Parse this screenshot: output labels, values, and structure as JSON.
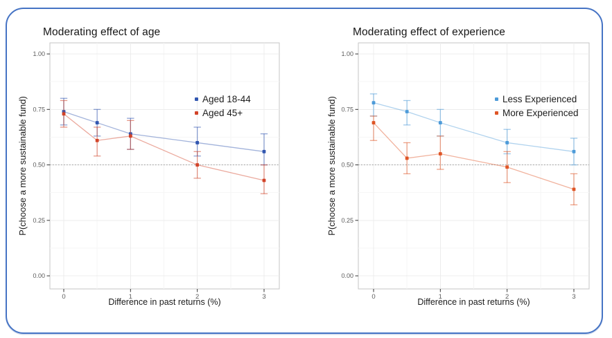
{
  "frame": {
    "border_color": "#4573c4",
    "background": "#ffffff"
  },
  "chart_data": [
    {
      "type": "line",
      "title": "Moderating effect of age",
      "xlabel": "Difference in past returns (%)",
      "ylabel": "P(choose a more sustainable fund)",
      "x": [
        0,
        0.5,
        1,
        2,
        3
      ],
      "xtick_values": [
        0,
        1,
        2,
        3
      ],
      "xtick_labels": [
        "0",
        "1",
        "2",
        "3"
      ],
      "ytick_values": [
        1.0,
        0.75,
        0.5,
        0.25,
        0.0
      ],
      "ytick_labels": [
        "1.00",
        "0.75",
        "0.50",
        "0.25",
        "0.00"
      ],
      "ylim": [
        -0.06,
        1.05
      ],
      "grid": true,
      "reference_line_y": 0.5,
      "legend_position": "inside-top-right",
      "series": [
        {
          "name": "Aged 18-44",
          "color": "#3156b0",
          "values": [
            0.74,
            0.69,
            0.64,
            0.6,
            0.56
          ],
          "ci_low": [
            0.68,
            0.63,
            0.57,
            0.54,
            0.5
          ],
          "ci_high": [
            0.8,
            0.75,
            0.71,
            0.67,
            0.64
          ]
        },
        {
          "name": "Aged 45+",
          "color": "#d24328",
          "values": [
            0.73,
            0.61,
            0.63,
            0.5,
            0.43
          ],
          "ci_low": [
            0.67,
            0.54,
            0.57,
            0.44,
            0.37
          ],
          "ci_high": [
            0.79,
            0.67,
            0.7,
            0.56,
            0.5
          ]
        }
      ]
    },
    {
      "type": "line",
      "title": "Moderating effect of experience",
      "xlabel": "Difference in past returns (%)",
      "ylabel": "P(choose a more sustainable fund)",
      "x": [
        0,
        0.5,
        1,
        2,
        3
      ],
      "xtick_values": [
        0,
        1,
        2,
        3
      ],
      "xtick_labels": [
        "0",
        "1",
        "2",
        "3"
      ],
      "ytick_values": [
        1.0,
        0.75,
        0.5,
        0.25,
        0.0
      ],
      "ytick_labels": [
        "1.00",
        "0.75",
        "0.50",
        "0.25",
        "0.00"
      ],
      "ylim": [
        -0.06,
        1.05
      ],
      "grid": true,
      "reference_line_y": 0.5,
      "legend_position": "inside-top-right",
      "series": [
        {
          "name": "Less Experienced",
          "color": "#4d9bd9",
          "values": [
            0.78,
            0.74,
            0.69,
            0.6,
            0.56
          ],
          "ci_low": [
            0.72,
            0.68,
            0.63,
            0.55,
            0.5
          ],
          "ci_high": [
            0.82,
            0.79,
            0.75,
            0.66,
            0.62
          ]
        },
        {
          "name": "More Experienced",
          "color": "#df5526",
          "values": [
            0.69,
            0.53,
            0.55,
            0.49,
            0.39
          ],
          "ci_low": [
            0.61,
            0.46,
            0.48,
            0.42,
            0.32
          ],
          "ci_high": [
            0.72,
            0.6,
            0.63,
            0.56,
            0.46
          ]
        }
      ]
    }
  ]
}
